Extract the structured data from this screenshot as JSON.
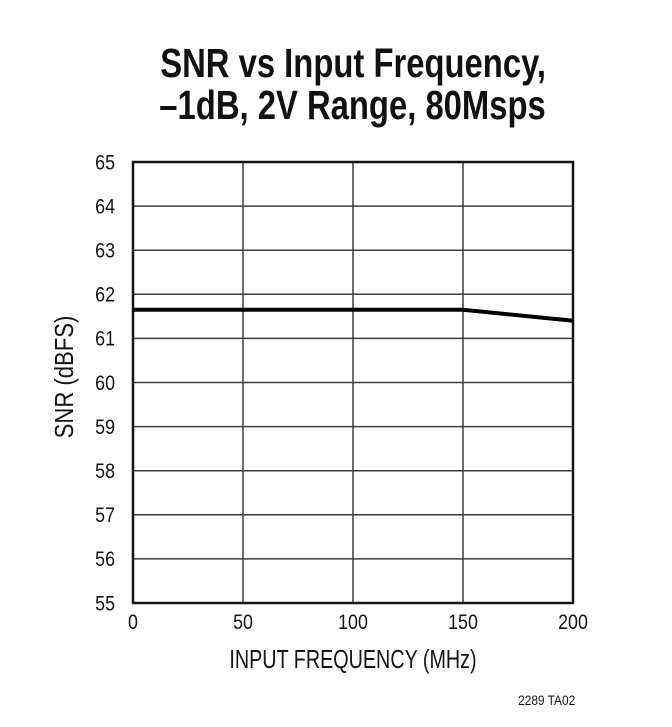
{
  "chart_data": {
    "type": "line",
    "title": "SNR vs Input Frequency, –1dB, 2V Range, 80Msps",
    "title_lines": [
      "SNR vs Input Frequency,",
      "–1dB, 2V Range, 80Msps"
    ],
    "xlabel": "INPUT FREQUENCY (MHz)",
    "ylabel": "SNR (dBFS)",
    "xlim": [
      0,
      200
    ],
    "ylim": [
      55,
      65
    ],
    "xticks": [
      0,
      50,
      100,
      150,
      200
    ],
    "yticks": [
      55,
      56,
      57,
      58,
      59,
      60,
      61,
      62,
      63,
      64,
      65
    ],
    "grid": true,
    "legend": null,
    "series": [
      {
        "name": "SNR",
        "color": "#000000",
        "x": [
          0,
          50,
          100,
          150,
          200
        ],
        "y": [
          61.65,
          61.65,
          61.65,
          61.65,
          61.4
        ]
      }
    ],
    "note": "2289 TA02",
    "colors": {
      "line": "#000000",
      "grid": "#3d3d3d",
      "frame": "#141414",
      "text": "#141414"
    }
  }
}
